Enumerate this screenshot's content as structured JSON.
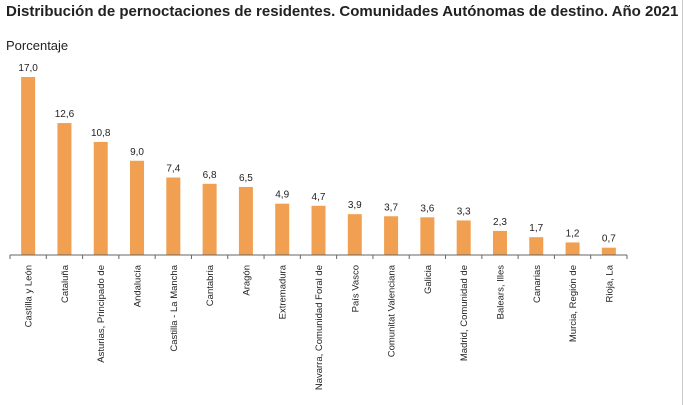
{
  "chart_data": {
    "type": "bar",
    "title": "Distribución de pernoctaciones de residentes. Comunidades Autónomas de destino. Año 2021",
    "subtitle": "Porcentaje",
    "categories": [
      "Castilla y León",
      "Cataluña",
      "Asturias, Principado de",
      "Andalucía",
      "Castilla - La Mancha",
      "Cantabria",
      "Aragón",
      "Extremadura",
      "Navarra, Comunidad Foral de",
      "País Vasco",
      "Comunitat Valenciana",
      "Galicia",
      "Madrid, Comunidad de",
      "Balears, Illes",
      "Canarias",
      "Murcia, Región de",
      "Rioja, La"
    ],
    "values": [
      17.0,
      12.6,
      10.8,
      9.0,
      7.4,
      6.8,
      6.5,
      4.9,
      4.7,
      3.9,
      3.7,
      3.6,
      3.3,
      2.3,
      1.7,
      1.2,
      0.7
    ],
    "data_labels": [
      "17,0",
      "12,6",
      "10,8",
      "9,0",
      "7,4",
      "6,8",
      "6,5",
      "4,9",
      "4,7",
      "3,9",
      "3,7",
      "3,6",
      "3,3",
      "2,3",
      "1,7",
      "1,2",
      "0,7"
    ],
    "ylim": [
      0,
      17
    ],
    "grid": false,
    "bar_color": "#F0A050"
  }
}
